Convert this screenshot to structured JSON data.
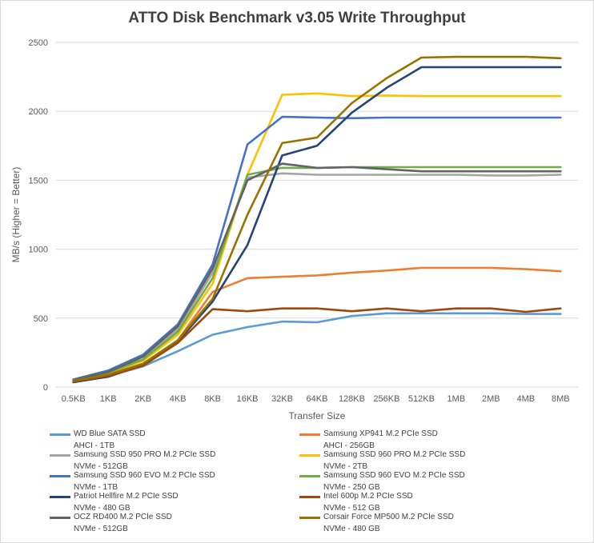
{
  "chart_data": {
    "type": "line",
    "title": "ATTO Disk Benchmark v3.05 Write Throughput",
    "xlabel": "Transfer Size",
    "ylabel": "MB/s (Higher = Better)",
    "ylim": [
      0,
      2500
    ],
    "yticks": [
      0,
      500,
      1000,
      1500,
      2000,
      2500
    ],
    "grid": true,
    "legend_position": "bottom",
    "categories": [
      "0.5KB",
      "1KB",
      "2KB",
      "4KB",
      "8KB",
      "16KB",
      "32KB",
      "64KB",
      "128KB",
      "256KB",
      "512KB",
      "1MB",
      "2MB",
      "4MB",
      "8MB"
    ],
    "series": [
      {
        "name": "WD Blue SATA SSD",
        "subtitle": "AHCI - 1TB",
        "color": "#5b9bd5",
        "values": [
          40,
          80,
          150,
          260,
          380,
          435,
          475,
          470,
          515,
          535,
          535,
          535,
          535,
          530,
          530
        ]
      },
      {
        "name": "Samsung XP941 M.2 PCIe SSD",
        "subtitle": "AHCI - 256GB",
        "color": "#ed7d31",
        "values": [
          45,
          85,
          160,
          340,
          690,
          790,
          800,
          810,
          830,
          845,
          865,
          865,
          865,
          855,
          840
        ]
      },
      {
        "name": "Samsung SSD 950 PRO M.2 PCIe SSD",
        "subtitle": "NVMe - 512GB",
        "color": "#a5a5a5",
        "values": [
          50,
          105,
          200,
          420,
          830,
          1520,
          1550,
          1540,
          1540,
          1540,
          1540,
          1540,
          1535,
          1535,
          1540
        ]
      },
      {
        "name": "Samsung SSD 960 PRO M.2 PCIe SSD",
        "subtitle": "NVMe - 2TB",
        "color": "#ffc000",
        "values": [
          50,
          100,
          190,
          380,
          750,
          1540,
          2120,
          2130,
          2110,
          2115,
          2110,
          2110,
          2110,
          2110,
          2110
        ]
      },
      {
        "name": "Samsung SSD 960 EVO M.2 PCIe SSD",
        "subtitle": "NVMe - 1TB",
        "color": "#4472c4",
        "values": [
          55,
          120,
          235,
          455,
          890,
          1760,
          1960,
          1955,
          1950,
          1955,
          1955,
          1955,
          1955,
          1955,
          1955
        ]
      },
      {
        "name": "Samsung SSD 960 EVO M.2 PCIe SSD",
        "subtitle": "NVMe - 250 GB",
        "color": "#70ad47",
        "values": [
          50,
          105,
          200,
          400,
          790,
          1540,
          1590,
          1590,
          1595,
          1595,
          1595,
          1595,
          1595,
          1595,
          1595
        ]
      },
      {
        "name": "Patriot Hellfire M.2 PCIe SSD",
        "subtitle": "NVMe - 480 GB",
        "color": "#264478",
        "values": [
          35,
          75,
          160,
          330,
          620,
          1030,
          1680,
          1750,
          1990,
          2170,
          2320,
          2320,
          2320,
          2320,
          2320
        ]
      },
      {
        "name": "Intel 600p M.2 PCIe SSD",
        "subtitle": "NVMe - 512 GB",
        "color": "#9e480e",
        "values": [
          40,
          80,
          155,
          320,
          565,
          550,
          570,
          570,
          550,
          570,
          550,
          570,
          570,
          545,
          570
        ]
      },
      {
        "name": "OCZ RD400 M.2 PCIe SSD",
        "subtitle": "NVMe - 512GB",
        "color": "#636363",
        "values": [
          50,
          110,
          220,
          440,
          860,
          1500,
          1620,
          1590,
          1595,
          1580,
          1565,
          1565,
          1565,
          1565,
          1565
        ]
      },
      {
        "name": "Corsair Force MP500 M.2 PCIe SSD",
        "subtitle": "NVMe - 480 GB",
        "color": "#997300",
        "values": [
          45,
          90,
          170,
          340,
          640,
          1250,
          1770,
          1810,
          2060,
          2240,
          2390,
          2395,
          2395,
          2395,
          2385
        ]
      }
    ]
  }
}
